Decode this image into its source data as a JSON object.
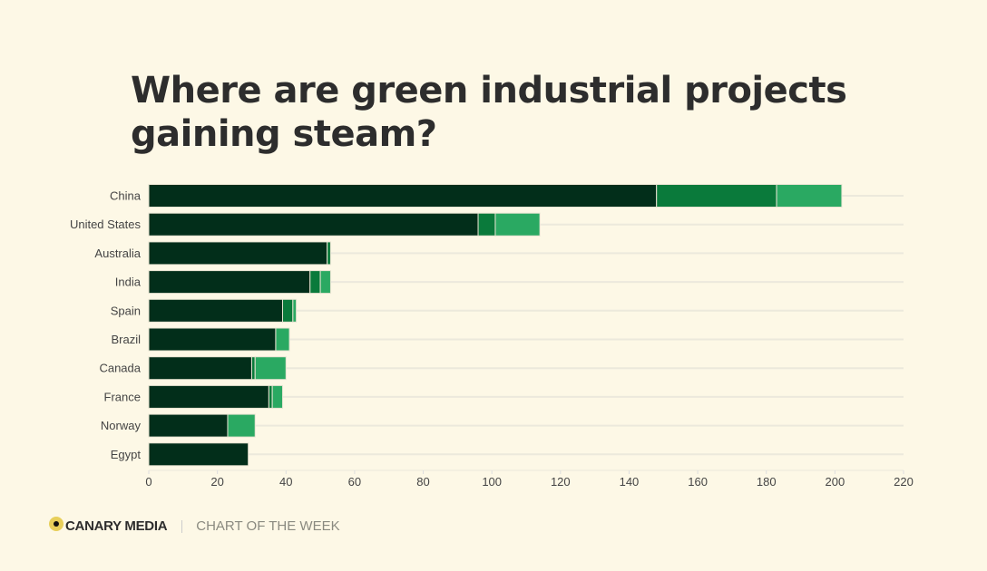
{
  "title": "Where are green industrial projects gaining steam?",
  "footer": {
    "brand": "CANARY MEDIA",
    "tagline": "CHART OF THE WEEK"
  },
  "chart_data": {
    "type": "bar",
    "orientation": "horizontal",
    "stacked": true,
    "categories": [
      "China",
      "United States",
      "Australia",
      "India",
      "Spain",
      "Brazil",
      "Canada",
      "France",
      "Norway",
      "Egypt"
    ],
    "series": [
      {
        "values": [
          148,
          96,
          52,
          47,
          39,
          37,
          30,
          35,
          23,
          29
        ],
        "color": "#022e1a"
      },
      {
        "values": [
          35,
          5,
          1,
          3,
          3,
          0,
          1,
          1,
          0,
          0
        ],
        "color": "#0a7a3b"
      },
      {
        "values": [
          19,
          13,
          0,
          3,
          1,
          4,
          9,
          3,
          8,
          0
        ],
        "color": "#2aa962"
      }
    ],
    "xlim": [
      0,
      220
    ],
    "xticks": [
      0,
      20,
      40,
      60,
      80,
      100,
      120,
      140,
      160,
      180,
      200,
      220
    ],
    "grid": true,
    "legend": "none"
  }
}
